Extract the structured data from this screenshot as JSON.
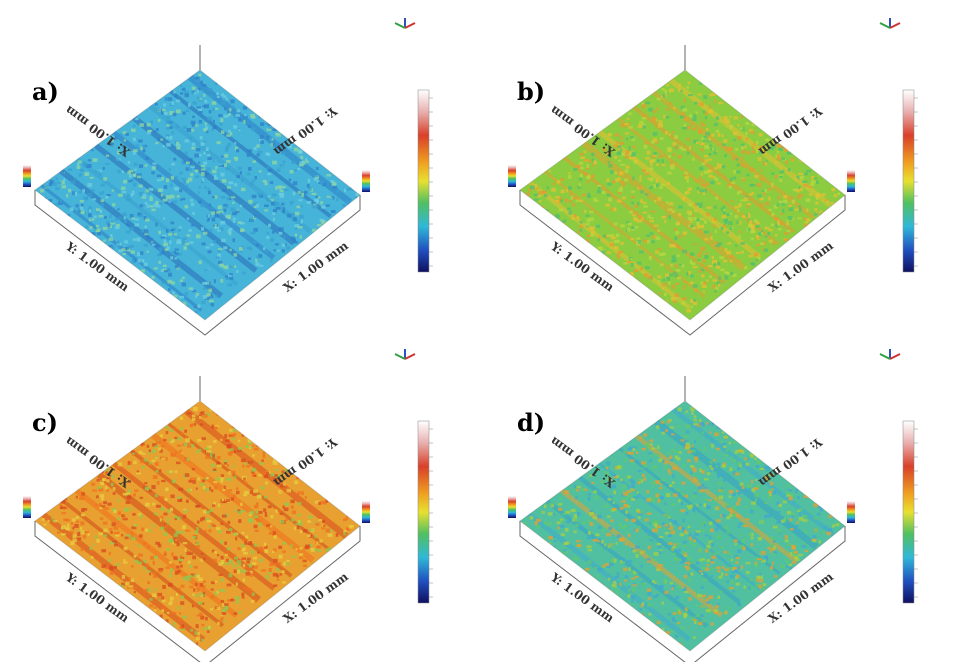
{
  "panels": [
    {
      "label": "a)",
      "x_axis": "X: 1.00 mm",
      "y_axis": "Y: 1.00 mm"
    },
    {
      "label": "b)",
      "x_axis": "X: 1.00 mm",
      "y_axis": "Y: 1.00 mm"
    },
    {
      "label": "c)",
      "x_axis": "X: 1.00 mm",
      "y_axis": "Y: 1.00 mm"
    },
    {
      "label": "d)",
      "x_axis": "X: 1.00 mm",
      "y_axis": "Y: 1.00 mm"
    }
  ]
}
